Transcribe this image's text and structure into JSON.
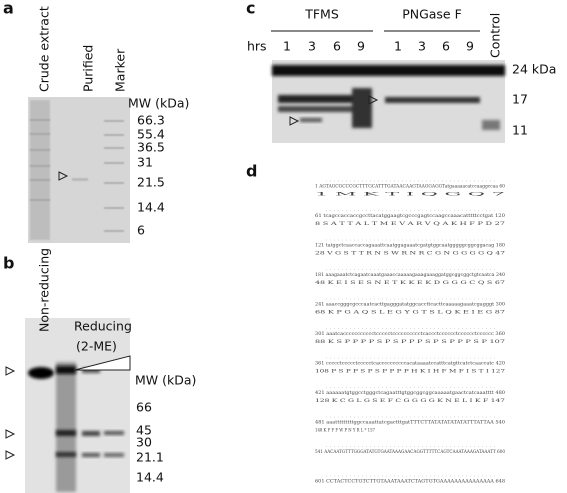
{
  "panel_a": {
    "letter": "a",
    "lanes": [
      "Crude extract",
      "Purified",
      "Marker"
    ],
    "mw_title": "MW (kDa)",
    "mw": [
      "66.3",
      "55.4",
      "36.5",
      "31",
      "21.5",
      "14.4",
      "6"
    ]
  },
  "panel_b": {
    "letter": "b",
    "lane": "Non-reducing",
    "reducing": "Reducing",
    "reducing_agent": "(2-ME)",
    "mw_title": "MW (kDa)",
    "mw": [
      "66",
      "45",
      "30",
      "21.1",
      "14.4"
    ]
  },
  "panel_c": {
    "letter": "c",
    "groups": [
      "TFMS",
      "PNGase F"
    ],
    "control": "Control",
    "time_label": "hrs",
    "times": [
      "1",
      "3",
      "6",
      "9",
      "1",
      "3",
      "6",
      "9"
    ],
    "mw": [
      "24 kDa",
      "17",
      "11"
    ]
  },
  "panel_d": {
    "letter": "d",
    "lines": [
      {
        "nt": "1 AGTAGCGCCCGCTTTGCATTTGATAACAAGTAAGGAGGTatgaaaaacatccaaggccaa 60",
        "aa": "1                                         M  K  T  I  Q  G  Q  7"
      },
      {
        "nt": "61 tcagccaccaccgccttacatggaagtcgcccgagtccaagccaaacatttttcctgat 120",
        "aa": "8 S  A  T  T  A  L  T  M  E  V  A  R  V  Q  A  K  H  F  P  D  27"
      },
      {
        "nt": "121 tatggctcaaccaccagaaattcaatggagaaatcgatgtggcaatgggggcggcggacag 180",
        "aa": "28 V  G  S  T  T  R  N  S  W  R  N  R  C  G  N  G  G  G  G  Q  47"
      },
      {
        "nt": "181 aaagaaatctcagaatcaaatgaaaccaaaaagaaagaaaggatggcggcggctgtcaatca 240",
        "aa": "48 K  E  I  S  E  S  N  E  T  K  K  E  K  D  G  G  G  C  Q  S  67"
      },
      {
        "nt": "241 aaaccgggcgcccaatcacttgagggatatggcaccttcacttcaaaaagaaatcgagggt 300",
        "aa": "68 K  P  G  A  Q  S  L  E  G  Y  G  T  S  L  Q  K  E  I  E  G  87"
      },
      {
        "nt": "301 aaatcaccccccccccctccccctcccccccccctcaccctcccccctcccccctcccccc 360",
        "aa": "88 K  S  P  P  P  P  S  P  S  P  P  P  S  P  S  P  P  P  S  P  107"
      },
      {
        "nt": "361 ccccctccccctccccctcaccccccccccacataaaatccatttcatgttcatctcaaccatc 420",
        "aa": "108 P  S  P  P  S  P  S  P  P  P  P  H  K  I  H  F  M  F  I  S  T  I  127"
      },
      {
        "nt": "421 aaaaaatgtggcctgggctcagaatttgtggcggcggcaaaaatgaactcatcaaatttt 480",
        "aa": "128 K  C  G  L  G  S  E  F  C  G  G  G  G  K  N  E  L  I  K  F  147"
      },
      {
        "nt": "481 aaatttttttttggccaaattatcgactttgatTTTCTTATATATATATATTTATTAA 540",
        "aa": "148 K  F  F  F  W  P  N  Y  R  L  *  157"
      },
      {
        "nt": "541 AACAATGTTTGGGATATGTGAATAAAGAACAGGTTTTTCAGTCAAATAAAGATAAATT 600",
        "aa": ""
      },
      {
        "nt": "601 CCTACTCCTGTCTTGTAAATAAATCTAGTGTGAAAAAAAAAAAAAAA 648",
        "aa": ""
      }
    ]
  }
}
